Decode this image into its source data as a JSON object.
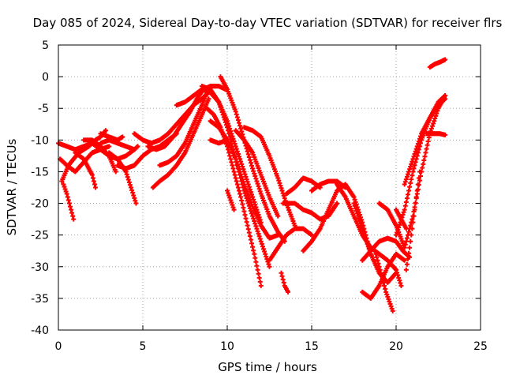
{
  "chart_data": {
    "type": "scatter",
    "title": "Day 085 of 2024, Sidereal Day-to-day VTEC variation (SDTVAR) for receiver flrs",
    "xlabel": "GPS time / hours",
    "ylabel": "SDTVAR / TECUs",
    "xlim": [
      0,
      25
    ],
    "ylim": [
      -40,
      5
    ],
    "xticks": [
      0,
      5,
      10,
      15,
      20,
      25
    ],
    "yticks": [
      -40,
      -35,
      -30,
      -25,
      -20,
      -15,
      -10,
      -5,
      0,
      5
    ],
    "grid": true,
    "marker": "plus",
    "color": "#ff0000",
    "series": [
      {
        "x": [
          0.0,
          0.5,
          1.0,
          1.5,
          2.0,
          2.5,
          3.0,
          3.5,
          4.0,
          4.5,
          4.7
        ],
        "y": [
          -10.5,
          -11.0,
          -11.5,
          -11.0,
          -10.5,
          -11.5,
          -12.5,
          -13.0,
          -12.5,
          -11.5,
          -11.0
        ]
      },
      {
        "x": [
          0.1,
          0.5,
          1.0,
          1.5,
          2.0,
          2.5,
          3.0
        ],
        "y": [
          -13.0,
          -14.0,
          -15.0,
          -13.5,
          -12.0,
          -11.5,
          -11.0
        ]
      },
      {
        "x": [
          0.3,
          0.5,
          0.7,
          0.9
        ],
        "y": [
          -17.0,
          -18.5,
          -20.5,
          -22.5
        ]
      },
      {
        "x": [
          0.2,
          0.6,
          1.2,
          1.8,
          2.2,
          2.5,
          2.8
        ],
        "y": [
          -16.5,
          -14.0,
          -12.0,
          -11.0,
          -10.0,
          -9.5,
          -8.5
        ]
      },
      {
        "x": [
          1.0,
          1.5,
          2.0,
          2.2
        ],
        "y": [
          -12.0,
          -13.0,
          -15.5,
          -17.5
        ]
      },
      {
        "x": [
          2.5,
          3.0,
          3.5,
          4.0,
          4.5
        ],
        "y": [
          -10.5,
          -10.0,
          -10.5,
          -11.0,
          -11.5
        ]
      },
      {
        "x": [
          1.5,
          2.0,
          2.5,
          3.0,
          3.4
        ],
        "y": [
          -10.0,
          -10.0,
          -11.0,
          -12.5,
          -15.0
        ]
      },
      {
        "x": [
          3.0,
          3.5,
          4.0,
          4.3,
          4.6
        ],
        "y": [
          -12.0,
          -13.0,
          -15.0,
          -17.5,
          -20.0
        ]
      },
      {
        "x": [
          3.5,
          4.0,
          4.5,
          5.0,
          5.5,
          6.0,
          6.5,
          7.0
        ],
        "y": [
          -14.0,
          -14.5,
          -14.0,
          -12.5,
          -11.5,
          -11.0,
          -10.0,
          -9.0
        ]
      },
      {
        "x": [
          2.5,
          3.0,
          3.5,
          3.8
        ],
        "y": [
          -9.0,
          -9.5,
          -10.0,
          -9.5
        ]
      },
      {
        "x": [
          4.5,
          5.0,
          5.5,
          6.0,
          6.5,
          7.0,
          7.5,
          8.0,
          8.5,
          8.9
        ],
        "y": [
          -9.0,
          -10.0,
          -10.5,
          -10.0,
          -9.0,
          -7.5,
          -6.0,
          -4.5,
          -3.5,
          -2.5
        ]
      },
      {
        "x": [
          5.3,
          5.8,
          6.3,
          6.8,
          7.3,
          7.8,
          8.2,
          8.6,
          9.0,
          9.5,
          9.9
        ],
        "y": [
          -11.0,
          -11.5,
          -11.0,
          -9.5,
          -7.5,
          -5.5,
          -3.5,
          -2.0,
          -1.5,
          -1.5,
          -2.0
        ]
      },
      {
        "x": [
          6.0,
          6.5,
          7.0,
          7.5,
          8.0,
          8.5,
          8.8
        ],
        "y": [
          -14.0,
          -13.5,
          -12.5,
          -10.5,
          -7.5,
          -4.5,
          -2.5
        ]
      },
      {
        "x": [
          5.6,
          6.0,
          6.5,
          7.0,
          7.5,
          8.0,
          8.5,
          8.9
        ],
        "y": [
          -17.5,
          -16.5,
          -15.5,
          -14.0,
          -12.0,
          -9.0,
          -6.0,
          -3.5
        ]
      },
      {
        "x": [
          7.0,
          7.5,
          8.0,
          8.5,
          9.0,
          9.5,
          10.0,
          10.5,
          11.0,
          11.5,
          12.0
        ],
        "y": [
          -4.5,
          -4.0,
          -3.0,
          -2.0,
          -2.5,
          -4.0,
          -7.0,
          -11.0,
          -15.0,
          -19.0,
          -23.0
        ]
      },
      {
        "x": [
          8.5,
          9.0,
          9.5,
          10.0,
          10.5,
          11.0,
          11.5,
          12.0,
          12.5
        ],
        "y": [
          -1.5,
          -2.0,
          -4.0,
          -8.0,
          -13.0,
          -18.0,
          -22.0,
          -26.0,
          -30.0
        ]
      },
      {
        "x": [
          8.8,
          9.2,
          9.6,
          10.0,
          10.4,
          10.8,
          11.2,
          11.6,
          12.0
        ],
        "y": [
          -5.0,
          -6.0,
          -8.0,
          -11.0,
          -15.0,
          -19.0,
          -23.5,
          -28.0,
          -33.0
        ]
      },
      {
        "x": [
          9.0,
          9.5,
          10.0,
          10.5,
          11.0,
          11.5,
          12.0,
          12.5,
          13.0
        ],
        "y": [
          -7.0,
          -8.0,
          -10.0,
          -13.0,
          -17.0,
          -20.5,
          -23.5,
          -25.5,
          -25.0
        ]
      },
      {
        "x": [
          9.6,
          10.0,
          10.5,
          11.0,
          11.5,
          12.0,
          12.5,
          13.0,
          13.4
        ],
        "y": [
          0.0,
          -2.0,
          -5.5,
          -10.0,
          -14.5,
          -18.5,
          -22.0,
          -24.5,
          -26.0
        ]
      },
      {
        "x": [
          10.5,
          11.0,
          11.5,
          12.0,
          12.5,
          13.0
        ],
        "y": [
          -8.5,
          -10.0,
          -12.0,
          -15.5,
          -19.0,
          -22.0
        ]
      },
      {
        "x": [
          11.0,
          11.5,
          12.0,
          12.5,
          13.0,
          13.5,
          14.0
        ],
        "y": [
          -8.0,
          -8.5,
          -9.5,
          -12.5,
          -16.0,
          -20.0,
          -23.5
        ]
      },
      {
        "x": [
          12.5,
          13.0,
          13.5,
          14.0,
          14.5,
          15.0
        ],
        "y": [
          -29.0,
          -27.0,
          -25.0,
          -24.0,
          -24.0,
          -25.0
        ]
      },
      {
        "x": [
          13.2,
          13.4,
          13.6
        ],
        "y": [
          -31.0,
          -33.0,
          -34.0
        ]
      },
      {
        "x": [
          10.0,
          10.2,
          10.4
        ],
        "y": [
          -18.0,
          -19.5,
          -21.0
        ]
      },
      {
        "x": [
          9.0,
          9.5,
          10.0
        ],
        "y": [
          -10.0,
          -10.5,
          -10.0
        ]
      },
      {
        "x": [
          13.3,
          14.0,
          14.5,
          15.0,
          15.5,
          16.0,
          16.5
        ],
        "y": [
          -20.0,
          -20.0,
          -21.0,
          -21.5,
          -22.5,
          -22.0,
          -20.0
        ]
      },
      {
        "x": [
          13.5,
          14.0,
          14.5,
          15.0,
          15.5
        ],
        "y": [
          -18.5,
          -17.5,
          -16.0,
          -16.5,
          -17.5
        ]
      },
      {
        "x": [
          15.0,
          15.5,
          16.0,
          16.5,
          17.0
        ],
        "y": [
          -18.0,
          -17.0,
          -16.5,
          -16.5,
          -17.5
        ]
      },
      {
        "x": [
          14.5,
          15.0,
          15.5,
          16.0,
          16.5,
          17.0,
          17.5,
          18.0,
          18.5
        ],
        "y": [
          -27.5,
          -26.0,
          -24.0,
          -21.0,
          -18.0,
          -17.0,
          -19.0,
          -23.0,
          -28.0
        ]
      },
      {
        "x": [
          16.5,
          17.0,
          17.5,
          18.0,
          18.5,
          19.0,
          19.5,
          20.0,
          20.3
        ],
        "y": [
          -17.0,
          -19.0,
          -22.0,
          -25.0,
          -27.0,
          -28.0,
          -29.0,
          -30.5,
          -33.0
        ]
      },
      {
        "x": [
          18.0,
          18.5,
          19.0,
          19.5,
          20.0,
          20.5
        ],
        "y": [
          -34.0,
          -35.0,
          -33.0,
          -30.0,
          -28.0,
          -29.0
        ]
      },
      {
        "x": [
          18.8,
          19.0,
          19.2,
          19.4,
          19.6,
          19.8
        ],
        "y": [
          -28.0,
          -30.0,
          -32.0,
          -34.0,
          -35.5,
          -37.0
        ]
      },
      {
        "x": [
          17.5,
          18.0,
          18.5,
          19.0,
          19.5,
          20.0
        ],
        "y": [
          -20.0,
          -24.0,
          -28.0,
          -31.0,
          -32.5,
          -31.0
        ]
      },
      {
        "x": [
          18.0,
          18.5,
          19.0,
          19.5,
          20.0,
          20.4,
          20.8
        ],
        "y": [
          -29.0,
          -27.5,
          -26.0,
          -25.5,
          -26.0,
          -27.5,
          -28.5
        ]
      },
      {
        "x": [
          19.0,
          19.5,
          20.0,
          20.5,
          21.0,
          21.5,
          22.0,
          22.5,
          22.9
        ],
        "y": [
          -20.0,
          -21.0,
          -23.5,
          -27.0,
          -22.0,
          -15.0,
          -9.0,
          -5.0,
          -3.0
        ]
      },
      {
        "x": [
          20.0,
          20.5,
          21.0,
          21.5,
          22.0,
          22.5,
          22.9
        ],
        "y": [
          -25.0,
          -21.0,
          -15.0,
          -10.0,
          -6.5,
          -4.0,
          -3.0
        ]
      },
      {
        "x": [
          20.5,
          21.0,
          21.5,
          22.0,
          22.5,
          22.9
        ],
        "y": [
          -17.0,
          -13.0,
          -9.0,
          -6.5,
          -4.5,
          -3.5
        ]
      },
      {
        "x": [
          20.6,
          20.8,
          21.0,
          21.2,
          21.4
        ],
        "y": [
          -30.5,
          -27.0,
          -23.0,
          -19.0,
          -15.0
        ]
      },
      {
        "x": [
          20.0,
          20.3,
          20.6
        ],
        "y": [
          -21.0,
          -22.5,
          -24.0
        ]
      },
      {
        "x": [
          21.8,
          22.2,
          22.6,
          22.9
        ],
        "y": [
          -9.0,
          -9.0,
          -9.0,
          -9.2
        ]
      },
      {
        "x": [
          22.0,
          22.3,
          22.6,
          22.9
        ],
        "y": [
          1.5,
          2.0,
          2.3,
          2.7
        ]
      }
    ]
  }
}
